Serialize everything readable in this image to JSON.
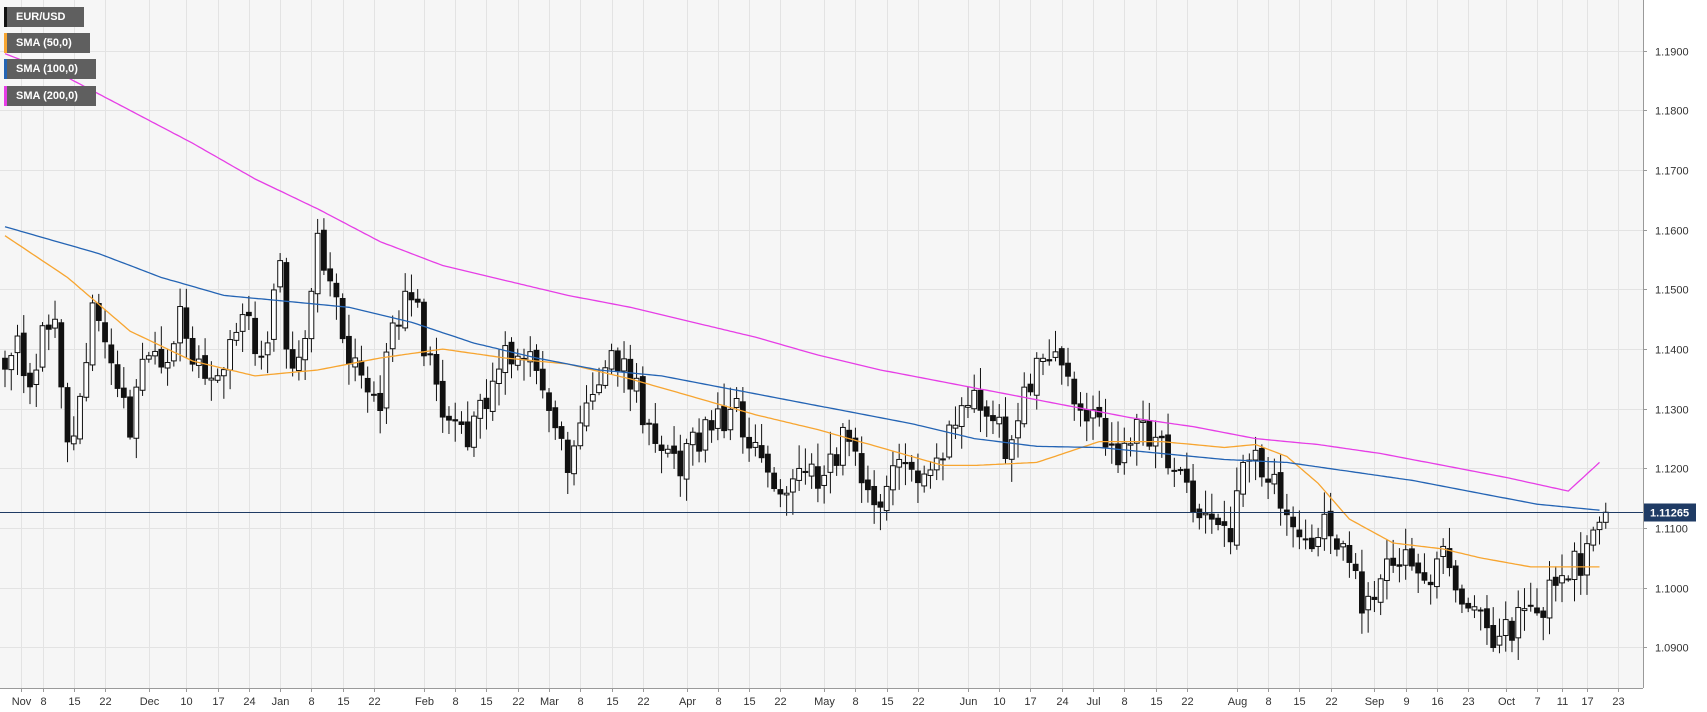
{
  "chart_data": {
    "type": "candlestick",
    "symbol": "EUR/USD",
    "last_price_label": "1.11265",
    "last_price": 1.11265,
    "ylim": [
      1.0832,
      1.1985
    ],
    "yticks": [
      "1.1900",
      "1.1800",
      "1.1700",
      "1.1600",
      "1.1500",
      "1.1400",
      "1.1300",
      "1.1200",
      "1.1100",
      "1.1000",
      "1.0900"
    ],
    "ytick_values": [
      1.19,
      1.18,
      1.17,
      1.16,
      1.15,
      1.14,
      1.13,
      1.12,
      1.11,
      1.1,
      1.09
    ],
    "xticks": [
      {
        "label": "Nov",
        "i": 0
      },
      {
        "label": "8",
        "i": 6
      },
      {
        "label": "15",
        "i": 11
      },
      {
        "label": "22",
        "i": 16
      },
      {
        "label": "Dec",
        "i": 23
      },
      {
        "label": "10",
        "i": 29
      },
      {
        "label": "17",
        "i": 34
      },
      {
        "label": "24",
        "i": 39
      },
      {
        "label": "Jan",
        "i": 44
      },
      {
        "label": "8",
        "i": 49
      },
      {
        "label": "15",
        "i": 54
      },
      {
        "label": "22",
        "i": 59
      },
      {
        "label": "Feb",
        "i": 67
      },
      {
        "label": "8",
        "i": 72
      },
      {
        "label": "15",
        "i": 77
      },
      {
        "label": "22",
        "i": 82
      },
      {
        "label": "Mar",
        "i": 87
      },
      {
        "label": "8",
        "i": 92
      },
      {
        "label": "15",
        "i": 97
      },
      {
        "label": "22",
        "i": 102
      },
      {
        "label": "Apr",
        "i": 109
      },
      {
        "label": "8",
        "i": 114
      },
      {
        "label": "15",
        "i": 119
      },
      {
        "label": "22",
        "i": 124
      },
      {
        "label": "May",
        "i": 131
      },
      {
        "label": "8",
        "i": 136
      },
      {
        "label": "15",
        "i": 141
      },
      {
        "label": "22",
        "i": 146
      },
      {
        "label": "Jun",
        "i": 154
      },
      {
        "label": "10",
        "i": 159
      },
      {
        "label": "17",
        "i": 164
      },
      {
        "label": "24",
        "i": 169
      },
      {
        "label": "Jul",
        "i": 174
      },
      {
        "label": "8",
        "i": 179
      },
      {
        "label": "15",
        "i": 184
      },
      {
        "label": "22",
        "i": 189
      },
      {
        "label": "Aug",
        "i": 197
      },
      {
        "label": "8",
        "i": 202
      },
      {
        "label": "15",
        "i": 207
      },
      {
        "label": "22",
        "i": 212
      },
      {
        "label": "Sep",
        "i": 219
      },
      {
        "label": "9",
        "i": 224
      },
      {
        "label": "16",
        "i": 229
      },
      {
        "label": "23",
        "i": 234
      },
      {
        "label": "Oct",
        "i": 240
      },
      {
        "label": "7",
        "i": 245
      },
      {
        "label": "11",
        "i": 249
      },
      {
        "label": "17",
        "i": 253
      },
      {
        "label": "23",
        "i": 258
      }
    ],
    "series": [
      {
        "name": "SMA (50,0)",
        "color": "#f7a530",
        "knots": [
          [
            0,
            1.159
          ],
          [
            10,
            1.152
          ],
          [
            20,
            1.143
          ],
          [
            30,
            1.138
          ],
          [
            40,
            1.1355
          ],
          [
            50,
            1.1365
          ],
          [
            60,
            1.1385
          ],
          [
            70,
            1.14
          ],
          [
            80,
            1.1385
          ],
          [
            90,
            1.1375
          ],
          [
            100,
            1.135
          ],
          [
            110,
            1.132
          ],
          [
            120,
            1.129
          ],
          [
            130,
            1.1265
          ],
          [
            140,
            1.1235
          ],
          [
            150,
            1.1205
          ],
          [
            155,
            1.1205
          ],
          [
            165,
            1.121
          ],
          [
            175,
            1.1245
          ],
          [
            185,
            1.1245
          ],
          [
            195,
            1.1235
          ],
          [
            200,
            1.124
          ],
          [
            205,
            1.122
          ],
          [
            210,
            1.1175
          ],
          [
            215,
            1.1115
          ],
          [
            222,
            1.1075
          ],
          [
            230,
            1.1065
          ],
          [
            236,
            1.105
          ],
          [
            244,
            1.1035
          ],
          [
            252,
            1.1035
          ],
          [
            255,
            1.1035
          ]
        ]
      },
      {
        "name": "SMA (100,0)",
        "color": "#2464b4",
        "knots": [
          [
            0,
            1.1605
          ],
          [
            15,
            1.156
          ],
          [
            25,
            1.152
          ],
          [
            35,
            1.149
          ],
          [
            45,
            1.148
          ],
          [
            55,
            1.147
          ],
          [
            65,
            1.1445
          ],
          [
            75,
            1.141
          ],
          [
            85,
            1.1385
          ],
          [
            95,
            1.1365
          ],
          [
            105,
            1.1355
          ],
          [
            115,
            1.1335
          ],
          [
            125,
            1.1315
          ],
          [
            135,
            1.1295
          ],
          [
            145,
            1.1275
          ],
          [
            155,
            1.125
          ],
          [
            165,
            1.1237
          ],
          [
            175,
            1.1235
          ],
          [
            185,
            1.1225
          ],
          [
            195,
            1.1215
          ],
          [
            205,
            1.121
          ],
          [
            215,
            1.1195
          ],
          [
            225,
            1.118
          ],
          [
            235,
            1.116
          ],
          [
            245,
            1.114
          ],
          [
            255,
            1.113
          ]
        ]
      },
      {
        "name": "SMA (200,0)",
        "color": "#e63ee6",
        "knots": [
          [
            0,
            1.1895
          ],
          [
            10,
            1.1855
          ],
          [
            20,
            1.18
          ],
          [
            30,
            1.1745
          ],
          [
            40,
            1.1685
          ],
          [
            50,
            1.1635
          ],
          [
            60,
            1.158
          ],
          [
            70,
            1.154
          ],
          [
            80,
            1.1515
          ],
          [
            90,
            1.149
          ],
          [
            100,
            1.147
          ],
          [
            110,
            1.1445
          ],
          [
            120,
            1.142
          ],
          [
            130,
            1.139
          ],
          [
            140,
            1.1365
          ],
          [
            150,
            1.1345
          ],
          [
            160,
            1.1325
          ],
          [
            170,
            1.1305
          ],
          [
            180,
            1.1285
          ],
          [
            190,
            1.127
          ],
          [
            200,
            1.125
          ],
          [
            210,
            1.124
          ],
          [
            220,
            1.1225
          ],
          [
            230,
            1.1205
          ],
          [
            240,
            1.1185
          ],
          [
            250,
            1.1162
          ],
          [
            255,
            1.121
          ]
        ]
      }
    ],
    "ohlc_anchors": [
      [
        0,
        1.139
      ],
      [
        2,
        1.143
      ],
      [
        4,
        1.134
      ],
      [
        6,
        1.142
      ],
      [
        8,
        1.147
      ],
      [
        10,
        1.124
      ],
      [
        12,
        1.131
      ],
      [
        14,
        1.145
      ],
      [
        16,
        1.141
      ],
      [
        18,
        1.134
      ],
      [
        20,
        1.128
      ],
      [
        22,
        1.137
      ],
      [
        24,
        1.142
      ],
      [
        26,
        1.136
      ],
      [
        28,
        1.145
      ],
      [
        30,
        1.139
      ],
      [
        32,
        1.133
      ],
      [
        34,
        1.137
      ],
      [
        36,
        1.141
      ],
      [
        38,
        1.147
      ],
      [
        40,
        1.139
      ],
      [
        42,
        1.144
      ],
      [
        44,
        1.152
      ],
      [
        46,
        1.134
      ],
      [
        48,
        1.144
      ],
      [
        50,
        1.161
      ],
      [
        52,
        1.15
      ],
      [
        54,
        1.142
      ],
      [
        56,
        1.139
      ],
      [
        58,
        1.135
      ],
      [
        60,
        1.131
      ],
      [
        62,
        1.143
      ],
      [
        64,
        1.149
      ],
      [
        66,
        1.145
      ],
      [
        68,
        1.138
      ],
      [
        70,
        1.131
      ],
      [
        72,
        1.128
      ],
      [
        74,
        1.124
      ],
      [
        76,
        1.131
      ],
      [
        78,
        1.134
      ],
      [
        80,
        1.138
      ],
      [
        82,
        1.139
      ],
      [
        84,
        1.137
      ],
      [
        86,
        1.135
      ],
      [
        88,
        1.126
      ],
      [
        90,
        1.119
      ],
      [
        92,
        1.128
      ],
      [
        94,
        1.131
      ],
      [
        96,
        1.136
      ],
      [
        98,
        1.139
      ],
      [
        100,
        1.136
      ],
      [
        102,
        1.13
      ],
      [
        104,
        1.125
      ],
      [
        106,
        1.121
      ],
      [
        108,
        1.12
      ],
      [
        110,
        1.124
      ],
      [
        112,
        1.127
      ],
      [
        114,
        1.128
      ],
      [
        116,
        1.13
      ],
      [
        118,
        1.128
      ],
      [
        120,
        1.124
      ],
      [
        122,
        1.118
      ],
      [
        124,
        1.113
      ],
      [
        126,
        1.117
      ],
      [
        128,
        1.12
      ],
      [
        130,
        1.117
      ],
      [
        132,
        1.123
      ],
      [
        134,
        1.124
      ],
      [
        136,
        1.12
      ],
      [
        138,
        1.117
      ],
      [
        140,
        1.116
      ],
      [
        142,
        1.118
      ],
      [
        144,
        1.122
      ],
      [
        146,
        1.116
      ],
      [
        148,
        1.119
      ],
      [
        150,
        1.124
      ],
      [
        152,
        1.128
      ],
      [
        154,
        1.133
      ],
      [
        156,
        1.129
      ],
      [
        158,
        1.13
      ],
      [
        160,
        1.122
      ],
      [
        162,
        1.128
      ],
      [
        164,
        1.134
      ],
      [
        166,
        1.139
      ],
      [
        168,
        1.137
      ],
      [
        170,
        1.136
      ],
      [
        172,
        1.129
      ],
      [
        174,
        1.127
      ],
      [
        176,
        1.125
      ],
      [
        178,
        1.121
      ],
      [
        180,
        1.126
      ],
      [
        182,
        1.127
      ],
      [
        184,
        1.124
      ],
      [
        186,
        1.122
      ],
      [
        188,
        1.12
      ],
      [
        190,
        1.114
      ],
      [
        192,
        1.111
      ],
      [
        194,
        1.11
      ],
      [
        196,
        1.107
      ],
      [
        198,
        1.12
      ],
      [
        200,
        1.122
      ],
      [
        202,
        1.118
      ],
      [
        204,
        1.114
      ],
      [
        206,
        1.109
      ],
      [
        208,
        1.108
      ],
      [
        210,
        1.11
      ],
      [
        212,
        1.11
      ],
      [
        214,
        1.106
      ],
      [
        216,
        1.1
      ],
      [
        218,
        1.097
      ],
      [
        220,
        1.102
      ],
      [
        222,
        1.104
      ],
      [
        224,
        1.106
      ],
      [
        226,
        1.103
      ],
      [
        228,
        1.099
      ],
      [
        230,
        1.105
      ],
      [
        232,
        1.101
      ],
      [
        234,
        1.098
      ],
      [
        236,
        1.095
      ],
      [
        238,
        1.091
      ],
      [
        240,
        1.092
      ],
      [
        242,
        1.096
      ],
      [
        244,
        1.097
      ],
      [
        246,
        1.098
      ],
      [
        248,
        1.101
      ],
      [
        250,
        1.104
      ],
      [
        252,
        1.103
      ],
      [
        254,
        1.112
      ],
      [
        256,
        1.1127
      ]
    ],
    "grid": true,
    "legend_placement": "top-left"
  }
}
